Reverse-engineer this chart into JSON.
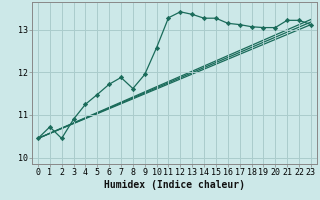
{
  "bg_color": "#cce8e8",
  "grid_color": "#aacccc",
  "line_color": "#1a6b5a",
  "marker_color": "#1a6b5a",
  "xlabel": "Humidex (Indice chaleur)",
  "xlabel_fontsize": 7,
  "tick_fontsize": 6,
  "xlim": [
    -0.5,
    23.5
  ],
  "ylim": [
    9.85,
    13.65
  ],
  "yticks": [
    10,
    11,
    12,
    13
  ],
  "xticks": [
    0,
    1,
    2,
    3,
    4,
    5,
    6,
    7,
    8,
    9,
    10,
    11,
    12,
    13,
    14,
    15,
    16,
    17,
    18,
    19,
    20,
    21,
    22,
    23
  ],
  "main_x": [
    0,
    1,
    2,
    3,
    4,
    5,
    6,
    7,
    8,
    9,
    10,
    11,
    12,
    13,
    14,
    15,
    16,
    17,
    18,
    19,
    20,
    21,
    22,
    23
  ],
  "main_y": [
    10.45,
    10.72,
    10.45,
    10.9,
    11.25,
    11.48,
    11.72,
    11.88,
    11.62,
    11.95,
    12.58,
    13.28,
    13.42,
    13.36,
    13.27,
    13.27,
    13.15,
    13.12,
    13.07,
    13.05,
    13.05,
    13.22,
    13.22,
    13.12
  ],
  "line2_x": [
    0,
    23
  ],
  "line2_y": [
    10.45,
    13.12
  ],
  "line3_x": [
    0,
    23
  ],
  "line3_y": [
    10.45,
    13.18
  ],
  "line4_x": [
    0,
    23
  ],
  "line4_y": [
    10.45,
    13.24
  ],
  "spine_color": "#888888"
}
